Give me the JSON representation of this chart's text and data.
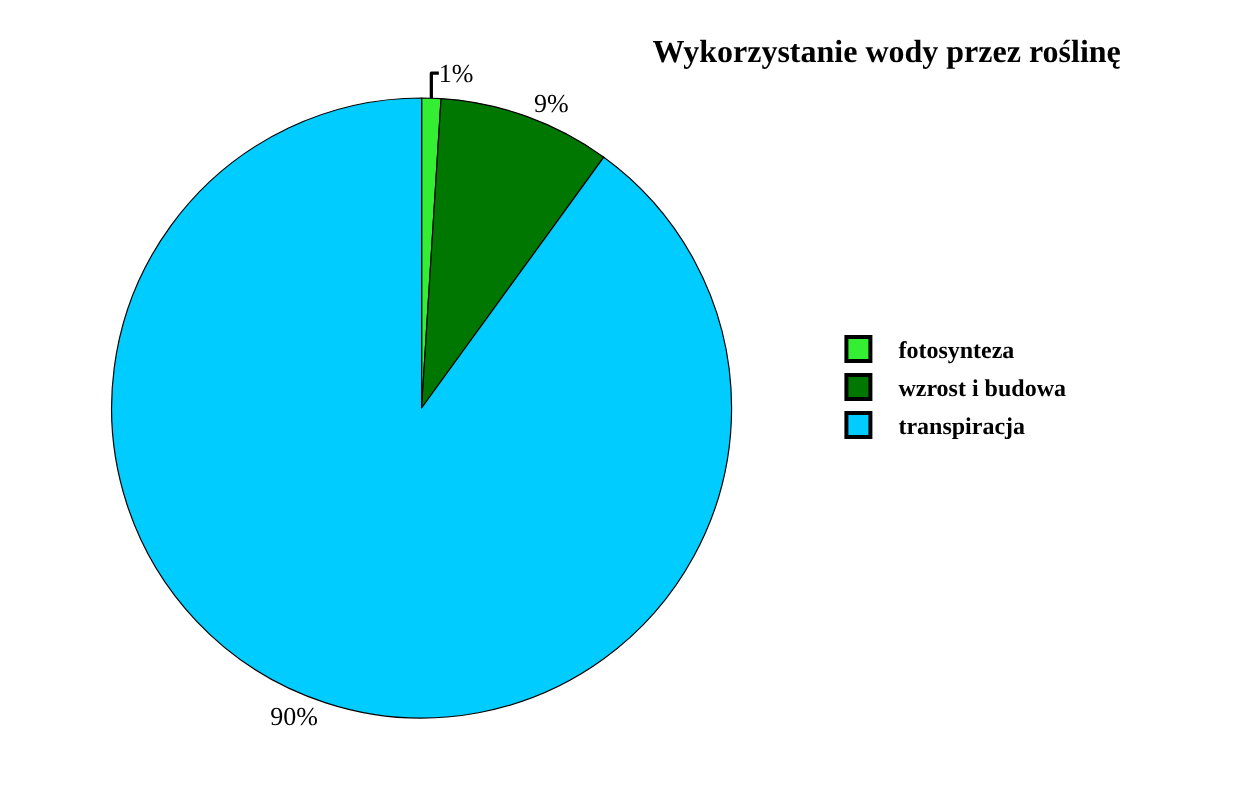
{
  "chart_data": {
    "type": "pie",
    "title": "Wykorzystanie wody przez roślinę",
    "categories": [
      "fotosynteza",
      "wzrost i budowa",
      "transpiracja"
    ],
    "values": [
      1,
      9,
      90
    ],
    "colors": [
      "#33ee33",
      "#007700",
      "#00ccff"
    ],
    "value_labels": [
      "1%",
      "9%",
      "90%"
    ],
    "legend": "right"
  }
}
